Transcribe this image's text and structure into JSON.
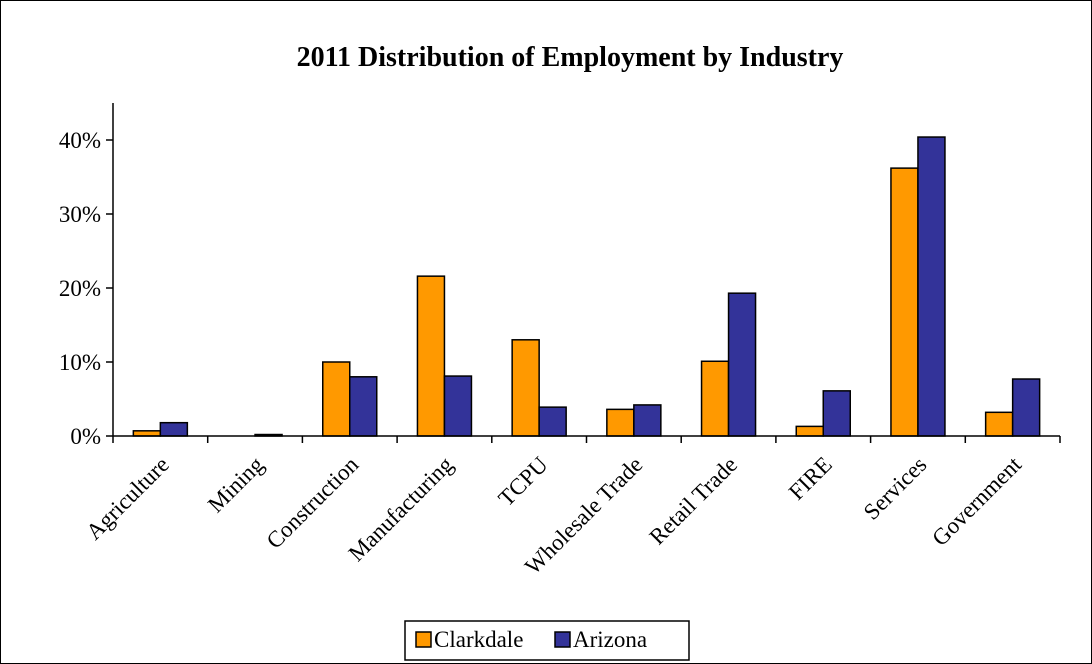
{
  "chart_data": {
    "type": "bar",
    "title": "2011 Distribution of Employment by Industry",
    "xlabel": "",
    "ylabel": "",
    "categories": [
      "Agriculture",
      "Mining",
      "Construction",
      "Manufacturing",
      "TCPU",
      "Wholesale Trade",
      "Retail Trade",
      "FIRE",
      "Services",
      "Government"
    ],
    "series": [
      {
        "name": "Clarkdale",
        "values": [
          0.7,
          0.0,
          10.0,
          21.6,
          13.0,
          3.6,
          10.1,
          1.3,
          36.2,
          3.2
        ]
      },
      {
        "name": "Arizona",
        "values": [
          1.8,
          0.2,
          8.0,
          8.1,
          3.9,
          4.2,
          19.3,
          6.1,
          40.4,
          7.7
        ]
      }
    ],
    "ylim": [
      0,
      45
    ],
    "y_ticks": [
      {
        "value": 0,
        "label": "0%"
      },
      {
        "value": 10,
        "label": "10%"
      },
      {
        "value": 20,
        "label": "20%"
      },
      {
        "value": 30,
        "label": "30%"
      },
      {
        "value": 40,
        "label": "40%"
      }
    ],
    "grid": false,
    "legend_position": "bottom",
    "colors": {
      "Clarkdale": "#ff9900",
      "Arizona": "#333399"
    }
  }
}
